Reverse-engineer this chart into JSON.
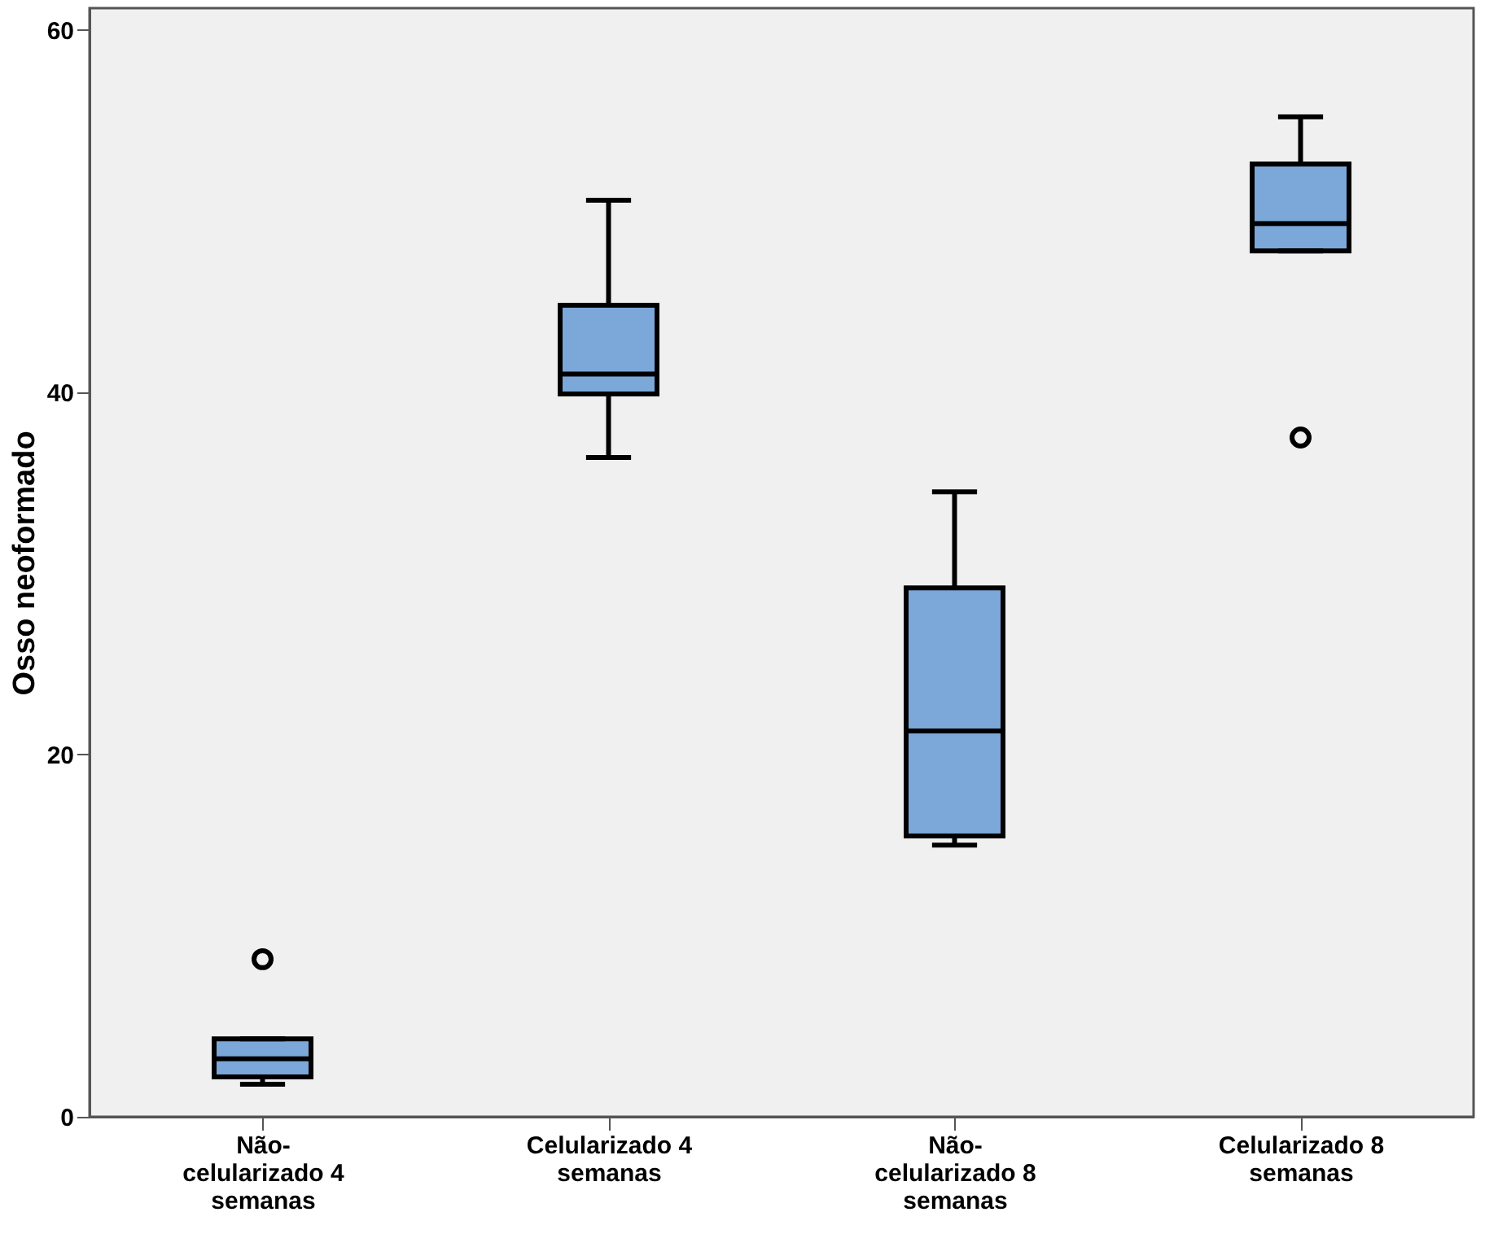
{
  "chart_data": {
    "type": "box",
    "ylabel": "Osso neoformado",
    "categories": [
      "Não-celularizado 4 semanas",
      "Celularizado 4 semanas",
      "Não-celularizado 8 semanas",
      "Celularizado 8 semanas"
    ],
    "ylim": [
      0,
      61.2
    ],
    "yticks": [
      0,
      20,
      40,
      60
    ],
    "grid": false,
    "series": [
      {
        "color": "#7ba7d9",
        "boxes": [
          {
            "low": 1.8,
            "q1": 2.2,
            "median": 3.2,
            "q3": 4.3,
            "high": 4.3,
            "outliers": [
              8.7
            ]
          },
          {
            "low": 36.4,
            "q1": 39.9,
            "median": 41.0,
            "q3": 44.8,
            "high": 50.6
          },
          {
            "low": 15.0,
            "q1": 15.5,
            "median": 21.3,
            "q3": 29.2,
            "high": 34.5
          },
          {
            "low": 47.8,
            "q1": 47.8,
            "median": 49.3,
            "q3": 52.6,
            "high": 55.2,
            "outliers": [
              37.5
            ]
          }
        ]
      }
    ]
  }
}
